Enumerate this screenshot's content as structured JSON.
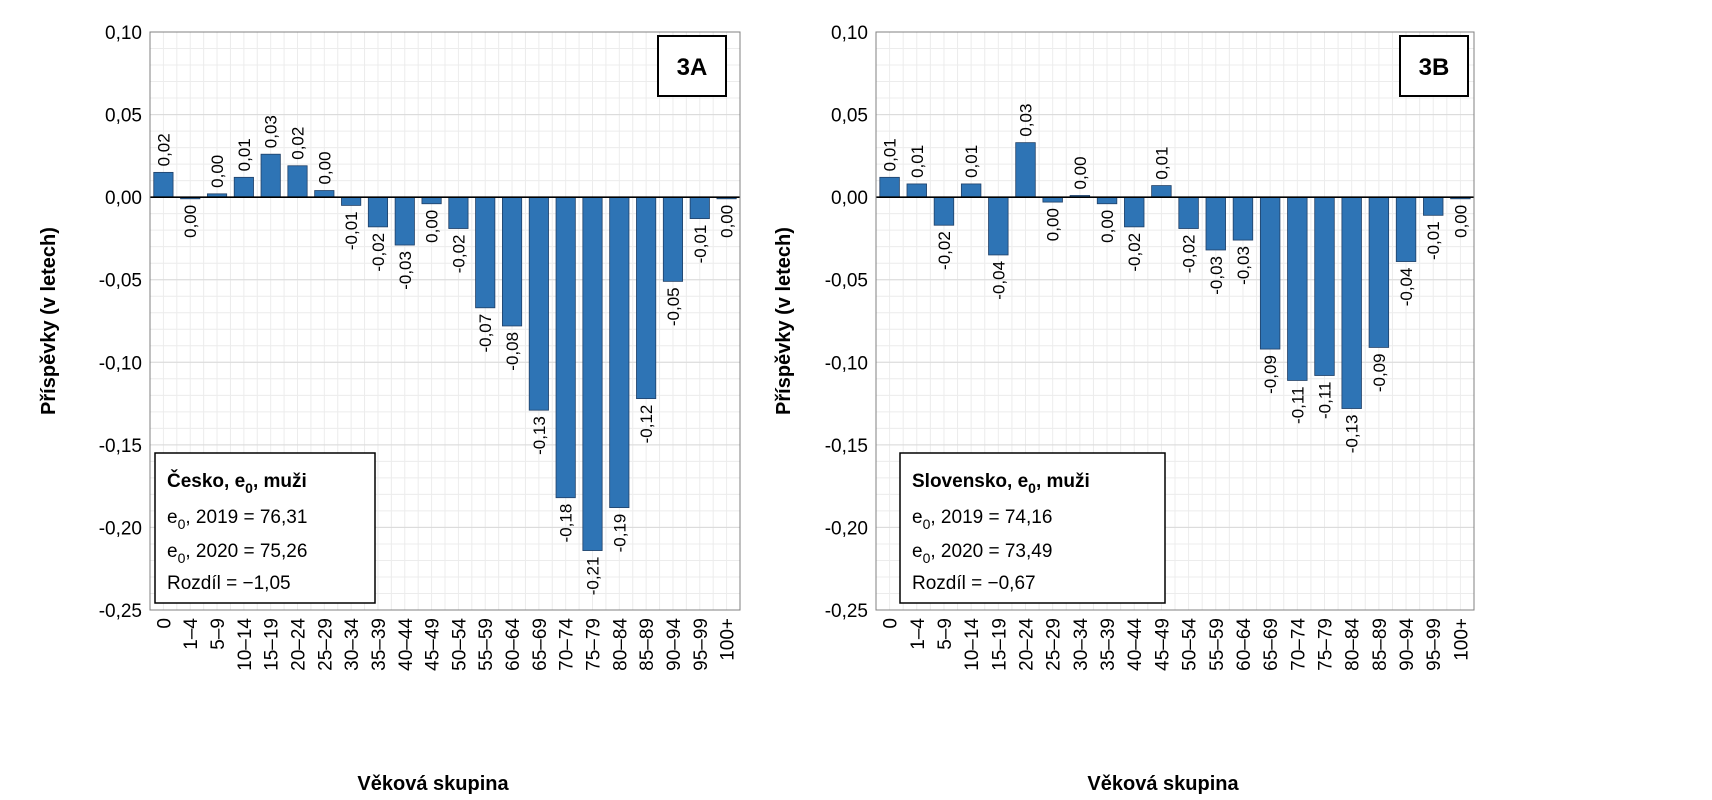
{
  "chart_data": [
    {
      "type": "bar",
      "panel_tag": "3A",
      "ylabel": "Příspěvky (v letech)",
      "xlabel": "Věková skupina",
      "ylim": [
        -0.25,
        0.1
      ],
      "yticks": [
        "0,10",
        "0,05",
        "0,00",
        "-0,05",
        "-0,10",
        "-0,15",
        "-0,20",
        "-0,25"
      ],
      "ytick_values": [
        0.1,
        0.05,
        0.0,
        -0.05,
        -0.1,
        -0.15,
        -0.2,
        -0.25
      ],
      "categories": [
        "0",
        "1–4",
        "5–9",
        "10–14",
        "15–19",
        "20–24",
        "25–29",
        "30–34",
        "35–39",
        "40–44",
        "45–49",
        "50–54",
        "55–59",
        "60–64",
        "65–69",
        "70–74",
        "75–79",
        "80–84",
        "85–89",
        "90–94",
        "95–99",
        "100+"
      ],
      "values": [
        0.015,
        -0.001,
        0.002,
        0.012,
        0.026,
        0.019,
        0.004,
        -0.005,
        -0.018,
        -0.029,
        -0.004,
        -0.019,
        -0.067,
        -0.078,
        -0.129,
        -0.182,
        -0.214,
        -0.188,
        -0.122,
        -0.051,
        -0.013,
        -0.001
      ],
      "data_labels": [
        "0,02",
        "0,00",
        "0,00",
        "0,01",
        "0,03",
        "0,02",
        "0,00",
        "-0,01",
        "-0,02",
        "-0,03",
        "0,00",
        "-0,02",
        "-0,07",
        "-0,08",
        "-0,13",
        "-0,18",
        "-0,21",
        "-0,19",
        "-0,12",
        "-0,05",
        "-0,01",
        "0,00"
      ],
      "legend_box": {
        "title_main": "Česko, e",
        "title_sub": "0",
        "title_rest": ", muži",
        "line1_main": "e",
        "line1_sub": "0",
        "line1_rest": ", 2019 = 76,31",
        "line2_main": "e",
        "line2_sub": "0",
        "line2_rest": ", 2020 = 75,26",
        "line3": "Rozdíl = −1,05"
      },
      "grid": true,
      "bar_color": "#2e74b5"
    },
    {
      "type": "bar",
      "panel_tag": "3B",
      "ylabel": "Příspěvky (v letech)",
      "xlabel": "Věková skupina",
      "ylim": [
        -0.25,
        0.1
      ],
      "yticks": [
        "0,10",
        "0,05",
        "0,00",
        "-0,05",
        "-0,10",
        "-0,15",
        "-0,20",
        "-0,25"
      ],
      "ytick_values": [
        0.1,
        0.05,
        0.0,
        -0.05,
        -0.1,
        -0.15,
        -0.2,
        -0.25
      ],
      "categories": [
        "0",
        "1–4",
        "5–9",
        "10–14",
        "15–19",
        "20–24",
        "25–29",
        "30–34",
        "35–39",
        "40–44",
        "45–49",
        "50–54",
        "55–59",
        "60–64",
        "65–69",
        "70–74",
        "75–79",
        "80–84",
        "85–89",
        "90–94",
        "95–99",
        "100+"
      ],
      "values": [
        0.012,
        0.008,
        -0.017,
        0.008,
        -0.035,
        0.033,
        -0.003,
        0.001,
        -0.004,
        -0.018,
        0.007,
        -0.019,
        -0.032,
        -0.026,
        -0.092,
        -0.111,
        -0.108,
        -0.128,
        -0.091,
        -0.039,
        -0.011,
        -0.001
      ],
      "data_labels": [
        "0,01",
        "0,01",
        "-0,02",
        "0,01",
        "-0,04",
        "0,03",
        "0,00",
        "0,00",
        "0,00",
        "-0,02",
        "0,01",
        "-0,02",
        "-0,03",
        "-0,03",
        "-0,09",
        "-0,11",
        "-0,11",
        "-0,13",
        "-0,09",
        "-0,04",
        "-0,01",
        "0,00"
      ],
      "legend_box": {
        "title_main": "Slovensko, e",
        "title_sub": "0",
        "title_rest": ", muži",
        "line1_main": "e",
        "line1_sub": "0",
        "line1_rest": ", 2019 = 74,16",
        "line2_main": "e",
        "line2_sub": "0",
        "line2_rest": ", 2020 = 73,49",
        "line3": "Rozdíl = −0,67"
      },
      "grid": true,
      "bar_color": "#2e74b5"
    }
  ]
}
